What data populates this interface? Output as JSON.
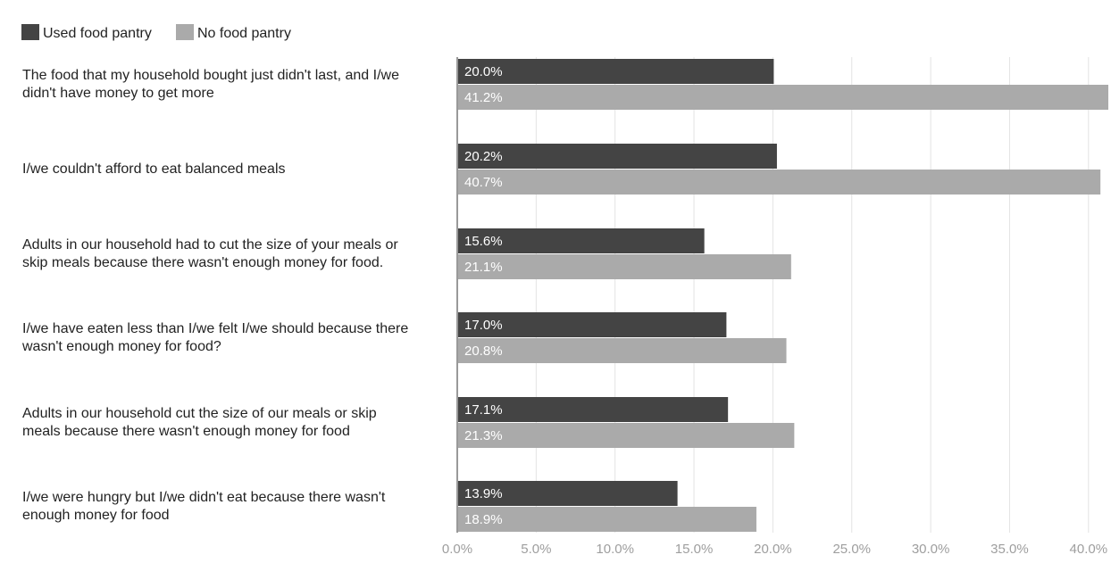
{
  "chart_data": {
    "type": "bar",
    "orientation": "horizontal",
    "legend_position": "top-left",
    "grid": true,
    "xlim": [
      0,
      41.2
    ],
    "ticks": [
      "0.0%",
      "5.0%",
      "10.0%",
      "15.0%",
      "20.0%",
      "25.0%",
      "30.0%",
      "35.0%",
      "40.0%"
    ],
    "tick_values": [
      0,
      5,
      10,
      15,
      20,
      25,
      30,
      35,
      40
    ],
    "categories": [
      [
        "The food that my household bought just didn't last, and I/we",
        "didn't have money to get more"
      ],
      [
        "I/we couldn't afford to eat balanced meals"
      ],
      [
        "Adults in our household had to cut the size of your meals or",
        "skip meals because there wasn't enough money for food."
      ],
      [
        "I/we have eaten less than I/we felt I/we should because there",
        "wasn't enough money for food?"
      ],
      [
        "Adults in our household cut the size of our meals or skip",
        "meals because there wasn't enough money for food"
      ],
      [
        "I/we were hungry but I/we didn't eat because there wasn't",
        "enough money for food"
      ]
    ],
    "series": [
      {
        "name": "Used food pantry",
        "color": "#444444",
        "values": [
          20.0,
          20.2,
          15.6,
          17.0,
          17.1,
          13.9
        ],
        "labels": [
          "20.0%",
          "20.2%",
          "15.6%",
          "17.0%",
          "17.1%",
          "13.9%"
        ]
      },
      {
        "name": "No food pantry",
        "color": "#aaaaaa",
        "values": [
          41.2,
          40.7,
          21.1,
          20.8,
          21.3,
          18.9
        ],
        "labels": [
          "41.2%",
          "40.7%",
          "21.1%",
          "20.8%",
          "21.3%",
          "18.9%"
        ]
      }
    ]
  }
}
